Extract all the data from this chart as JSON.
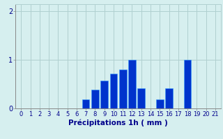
{
  "categories": [
    0,
    1,
    2,
    3,
    4,
    5,
    6,
    7,
    8,
    9,
    10,
    11,
    12,
    13,
    14,
    15,
    16,
    17,
    18,
    19,
    20,
    21
  ],
  "values": [
    0,
    0,
    0,
    0,
    0,
    0,
    0,
    0.18,
    0.38,
    0.58,
    0.72,
    0.8,
    1.0,
    0.42,
    0,
    0.18,
    0.42,
    0,
    1.0,
    0,
    0,
    0
  ],
  "bar_color": "#0033cc",
  "bar_edge_color": "#3399ff",
  "background_color": "#d6efef",
  "grid_color": "#b0d0d0",
  "text_color": "#00008b",
  "xlabel": "Précipitations 1h ( mm )",
  "xlabel_fontsize": 7.5,
  "tick_fontsize": 6,
  "ylim": [
    0,
    2.15
  ],
  "yticks": [
    0,
    1,
    2
  ],
  "xlim": [
    -0.6,
    21.6
  ]
}
